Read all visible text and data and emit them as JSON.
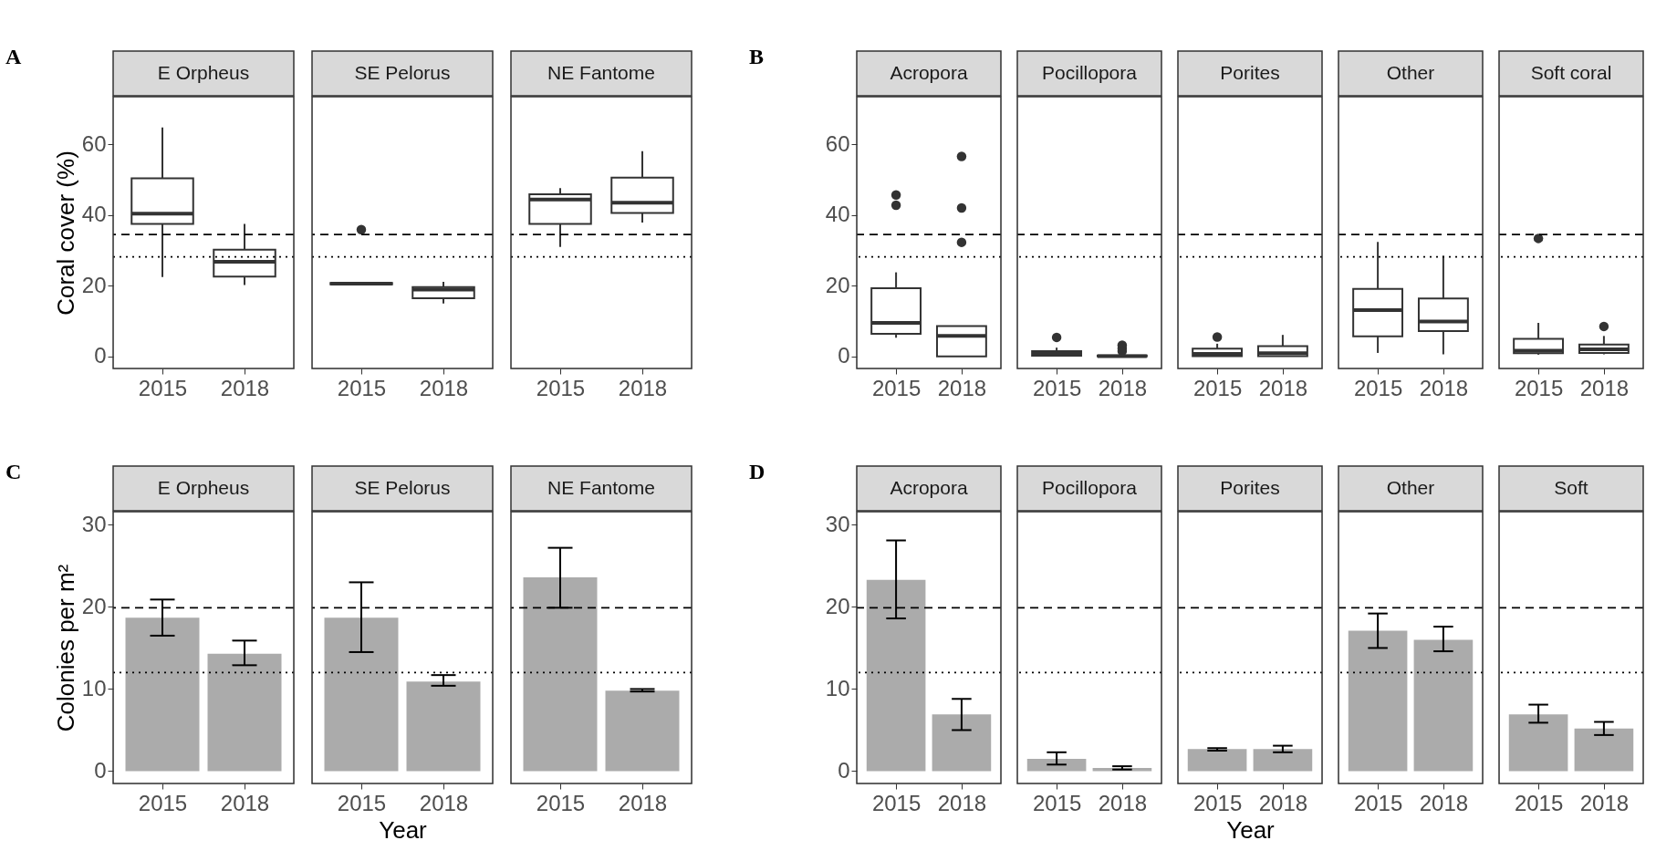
{
  "chart_data": [
    {
      "type": "box",
      "title": "E Orpheus",
      "ylabel": "Coral cover (%)",
      "annotations": [
        "A"
      ],
      "categories": [
        "2015",
        "2018"
      ],
      "ylim": [
        -3.4,
        73.5
      ],
      "yticks": [
        0,
        20,
        40,
        60
      ],
      "grid": false,
      "color": "#333333",
      "boxes": [
        {
          "low": 22.5,
          "q1": 37.5,
          "median": 40.4,
          "q3": 50.4,
          "high": 64.8
        },
        {
          "low": 20.2,
          "q1": 22.6,
          "median": 26.8,
          "q3": 30.2,
          "high": 37.5
        }
      ],
      "ref_lines": [
        {
          "axis": "y",
          "value": 34.5,
          "line_style": "dashed"
        },
        {
          "axis": "y",
          "value": 28.2,
          "line_style": "dotted"
        }
      ]
    },
    {
      "type": "box",
      "title": "SE Pelorus",
      "categories": [
        "2015",
        "2018"
      ],
      "ylim": [
        -3.4,
        73.5
      ],
      "tick_labels": "x",
      "grid": false,
      "color": "#333333",
      "boxes": [
        {
          "low": 20.3,
          "q1": 20.4,
          "median": 20.6,
          "q3": 20.8,
          "high": 20.9,
          "outliers": [
            35.9
          ]
        },
        {
          "low": 15,
          "q1": 16.5,
          "median": 18.9,
          "q3": 19.6,
          "high": 21.1
        }
      ],
      "ref_lines": [
        {
          "axis": "y",
          "value": 34.5,
          "line_style": "dashed"
        },
        {
          "axis": "y",
          "value": 28.2,
          "line_style": "dotted"
        }
      ]
    },
    {
      "type": "box",
      "title": "NE Fantome",
      "categories": [
        "2015",
        "2018"
      ],
      "ylim": [
        -3.4,
        73.5
      ],
      "tick_labels": "x",
      "grid": false,
      "color": "#333333",
      "boxes": [
        {
          "low": 31,
          "q1": 37.5,
          "median": 44.4,
          "q3": 45.9,
          "high": 47.6
        },
        {
          "low": 37.9,
          "q1": 40.6,
          "median": 43.5,
          "q3": 50.6,
          "high": 58.1
        }
      ],
      "ref_lines": [
        {
          "axis": "y",
          "value": 34.5,
          "line_style": "dashed"
        },
        {
          "axis": "y",
          "value": 28.2,
          "line_style": "dotted"
        }
      ]
    },
    {
      "type": "box",
      "title": "Acropora",
      "annotations": [
        "B"
      ],
      "categories": [
        "2015",
        "2018"
      ],
      "ylim": [
        -3.4,
        73.5
      ],
      "yticks": [
        0,
        20,
        40,
        60
      ],
      "grid": false,
      "color": "#333333",
      "boxes": [
        {
          "low": 5.3,
          "q1": 6.4,
          "median": 9.5,
          "q3": 19.3,
          "high": 23.8,
          "outliers": [
            45.7,
            42.8
          ]
        },
        {
          "low": 0,
          "q1": 0,
          "median": 5.8,
          "q3": 8.6,
          "high": 8.6,
          "outliers": [
            56.6,
            42.0,
            32.3
          ]
        }
      ],
      "ref_lines": [
        {
          "axis": "y",
          "value": 34.5,
          "line_style": "dashed"
        },
        {
          "axis": "y",
          "value": 28.2,
          "line_style": "dotted"
        }
      ]
    },
    {
      "type": "box",
      "title": "Pocillopora",
      "categories": [
        "2015",
        "2018"
      ],
      "ylim": [
        -3.4,
        73.5
      ],
      "tick_labels": "x",
      "grid": false,
      "color": "#333333",
      "boxes": [
        {
          "low": 0,
          "q1": 0.2,
          "median": 0.9,
          "q3": 1.5,
          "high": 2.5,
          "outliers": [
            5.4
          ]
        },
        {
          "low": 0,
          "q1": 0,
          "median": 0.1,
          "q3": 0.3,
          "high": 0.5,
          "outliers": [
            3.2,
            2.3,
            1.5
          ]
        }
      ],
      "ref_lines": [
        {
          "axis": "y",
          "value": 34.5,
          "line_style": "dashed"
        },
        {
          "axis": "y",
          "value": 28.2,
          "line_style": "dotted"
        }
      ]
    },
    {
      "type": "box",
      "title": "Porites",
      "categories": [
        "2015",
        "2018"
      ],
      "ylim": [
        -3.4,
        73.5
      ],
      "tick_labels": "x",
      "grid": false,
      "color": "#333333",
      "boxes": [
        {
          "low": 0,
          "q1": 0.1,
          "median": 0.7,
          "q3": 2.2,
          "high": 3.6,
          "outliers": [
            5.5
          ]
        },
        {
          "low": 0,
          "q1": 0.1,
          "median": 0.9,
          "q3": 2.9,
          "high": 6.1
        }
      ],
      "ref_lines": [
        {
          "axis": "y",
          "value": 34.5,
          "line_style": "dashed"
        },
        {
          "axis": "y",
          "value": 28.2,
          "line_style": "dotted"
        }
      ]
    },
    {
      "type": "box",
      "title": "Other",
      "categories": [
        "2015",
        "2018"
      ],
      "ylim": [
        -3.4,
        73.5
      ],
      "tick_labels": "x",
      "grid": false,
      "color": "#333333",
      "boxes": [
        {
          "low": 1,
          "q1": 5.7,
          "median": 13.1,
          "q3": 19.1,
          "high": 32.4
        },
        {
          "low": 0.6,
          "q1": 7.2,
          "median": 9.9,
          "q3": 16.4,
          "high": 28.5
        }
      ],
      "ref_lines": [
        {
          "axis": "y",
          "value": 34.5,
          "line_style": "dashed"
        },
        {
          "axis": "y",
          "value": 28.2,
          "line_style": "dotted"
        }
      ]
    },
    {
      "type": "box",
      "title": "Soft coral",
      "categories": [
        "2015",
        "2018"
      ],
      "ylim": [
        -3.4,
        73.5
      ],
      "tick_labels": "x",
      "grid": false,
      "color": "#333333",
      "boxes": [
        {
          "low": 0.5,
          "q1": 0.9,
          "median": 1.6,
          "q3": 5,
          "high": 9.5,
          "outliers": [
            33.4
          ]
        },
        {
          "low": 0.6,
          "q1": 1,
          "median": 2,
          "q3": 3.4,
          "high": 5.8,
          "outliers": [
            8.5
          ]
        }
      ],
      "ref_lines": [
        {
          "axis": "y",
          "value": 34.5,
          "line_style": "dashed"
        },
        {
          "axis": "y",
          "value": 28.2,
          "line_style": "dotted"
        }
      ]
    },
    {
      "type": "bar",
      "title": "E Orpheus",
      "ylabel": "Colonies per m²",
      "annotations": [
        "C"
      ],
      "categories": [
        "2015",
        "2018"
      ],
      "ylim": [
        -1.5,
        31.6
      ],
      "yticks": [
        0,
        10,
        20,
        30
      ],
      "grid": false,
      "color": "#ababab",
      "values": [
        18.7,
        14.3
      ],
      "errors": [
        [
          16.5,
          20.9
        ],
        [
          12.9,
          15.9
        ]
      ],
      "ref_lines": [
        {
          "axis": "y",
          "value": 19.9,
          "line_style": "dashed"
        },
        {
          "axis": "y",
          "value": 12,
          "line_style": "dotted"
        }
      ]
    },
    {
      "type": "bar",
      "title": "SE Pelorus",
      "xlabel": "Year",
      "categories": [
        "2015",
        "2018"
      ],
      "ylim": [
        -1.5,
        31.6
      ],
      "tick_labels": "x",
      "grid": false,
      "color": "#ababab",
      "values": [
        18.7,
        10.9
      ],
      "errors": [
        [
          14.5,
          23.0
        ],
        [
          10.4,
          11.7
        ]
      ],
      "ref_lines": [
        {
          "axis": "y",
          "value": 19.9,
          "line_style": "dashed"
        },
        {
          "axis": "y",
          "value": 12,
          "line_style": "dotted"
        }
      ]
    },
    {
      "type": "bar",
      "title": "NE Fantome",
      "categories": [
        "2015",
        "2018"
      ],
      "ylim": [
        -1.5,
        31.6
      ],
      "tick_labels": "x",
      "grid": false,
      "color": "#ababab",
      "values": [
        23.6,
        9.8
      ],
      "errors": [
        [
          19.9,
          27.2
        ],
        [
          9.7,
          10.0
        ]
      ],
      "ref_lines": [
        {
          "axis": "y",
          "value": 19.9,
          "line_style": "dashed"
        },
        {
          "axis": "y",
          "value": 12,
          "line_style": "dotted"
        }
      ]
    },
    {
      "type": "bar",
      "title": "Acropora",
      "annotations": [
        "D"
      ],
      "categories": [
        "2015",
        "2018"
      ],
      "ylim": [
        -1.5,
        31.6
      ],
      "yticks": [
        0,
        10,
        20,
        30
      ],
      "grid": false,
      "color": "#ababab",
      "values": [
        23.3,
        6.9
      ],
      "errors": [
        [
          18.6,
          28.1
        ],
        [
          5.0,
          8.8
        ]
      ],
      "ref_lines": [
        {
          "axis": "y",
          "value": 19.9,
          "line_style": "dashed"
        },
        {
          "axis": "y",
          "value": 12,
          "line_style": "dotted"
        }
      ]
    },
    {
      "type": "bar",
      "title": "Pocillopora",
      "categories": [
        "2015",
        "2018"
      ],
      "ylim": [
        -1.5,
        31.6
      ],
      "tick_labels": "x",
      "grid": false,
      "color": "#ababab",
      "values": [
        1.5,
        0.4
      ],
      "errors": [
        [
          0.8,
          2.3
        ],
        [
          0.2,
          0.6
        ]
      ],
      "ref_lines": [
        {
          "axis": "y",
          "value": 19.9,
          "line_style": "dashed"
        },
        {
          "axis": "y",
          "value": 12,
          "line_style": "dotted"
        }
      ]
    },
    {
      "type": "bar",
      "title": "Porites",
      "xlabel": "Year",
      "categories": [
        "2015",
        "2018"
      ],
      "ylim": [
        -1.5,
        31.6
      ],
      "tick_labels": "x",
      "grid": false,
      "color": "#ababab",
      "values": [
        2.7,
        2.7
      ],
      "errors": [
        [
          2.5,
          2.8
        ],
        [
          2.3,
          3.1
        ]
      ],
      "ref_lines": [
        {
          "axis": "y",
          "value": 19.9,
          "line_style": "dashed"
        },
        {
          "axis": "y",
          "value": 12,
          "line_style": "dotted"
        }
      ]
    },
    {
      "type": "bar",
      "title": "Other",
      "categories": [
        "2015",
        "2018"
      ],
      "ylim": [
        -1.5,
        31.6
      ],
      "tick_labels": "x",
      "grid": false,
      "color": "#ababab",
      "values": [
        17.1,
        16.0
      ],
      "errors": [
        [
          15.0,
          19.2
        ],
        [
          14.6,
          17.6
        ]
      ],
      "ref_lines": [
        {
          "axis": "y",
          "value": 19.9,
          "line_style": "dashed"
        },
        {
          "axis": "y",
          "value": 12,
          "line_style": "dotted"
        }
      ]
    },
    {
      "type": "bar",
      "title": "Soft",
      "categories": [
        "2015",
        "2018"
      ],
      "ylim": [
        -1.5,
        31.6
      ],
      "tick_labels": "x",
      "grid": false,
      "color": "#ababab",
      "values": [
        6.9,
        5.2
      ],
      "errors": [
        [
          5.9,
          8.1
        ],
        [
          4.4,
          6.0
        ]
      ],
      "ref_lines": [
        {
          "axis": "y",
          "value": 19.9,
          "line_style": "dashed"
        },
        {
          "axis": "y",
          "value": 12,
          "line_style": "dotted"
        }
      ]
    }
  ]
}
